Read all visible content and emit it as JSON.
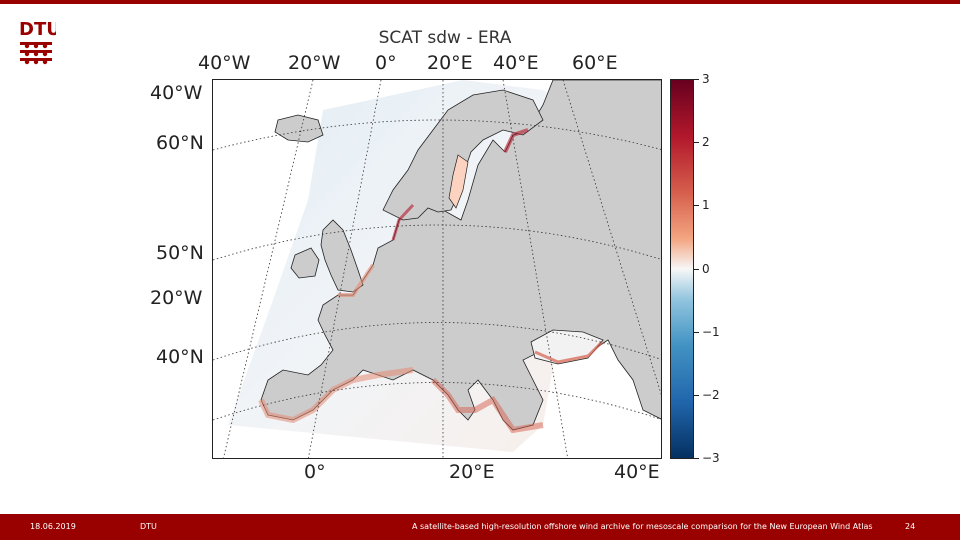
{
  "header": {
    "logo_text": "DTU",
    "accent_color": "#990000"
  },
  "figure": {
    "title": "SCAT sdw - ERA",
    "top_lon_labels": [
      "40°W",
      "20°W",
      "0°",
      "20°E",
      "40°E",
      "60°E"
    ],
    "left_labels": [
      "40°W",
      "60°N",
      "50°N",
      "20°W",
      "40°N"
    ],
    "bottom_lon_labels": [
      "0°",
      "20°E",
      "40°E"
    ],
    "colorbar": {
      "ticks": [
        "3",
        "2",
        "1",
        "0",
        "−1",
        "−2",
        "−3"
      ],
      "range": [
        -3,
        3
      ],
      "colormap": "RdBu_r",
      "high_color": "#67001f",
      "mid_color": "#f7f7f7",
      "low_color": "#053061"
    },
    "land_color": "#cccccc"
  },
  "footer": {
    "date": "18.06.2019",
    "org": "DTU",
    "presentation_title": "A satellite-based high-resolution offshore wind archive for mesoscale comparison for the New European Wind Atlas",
    "page_number": "24"
  }
}
